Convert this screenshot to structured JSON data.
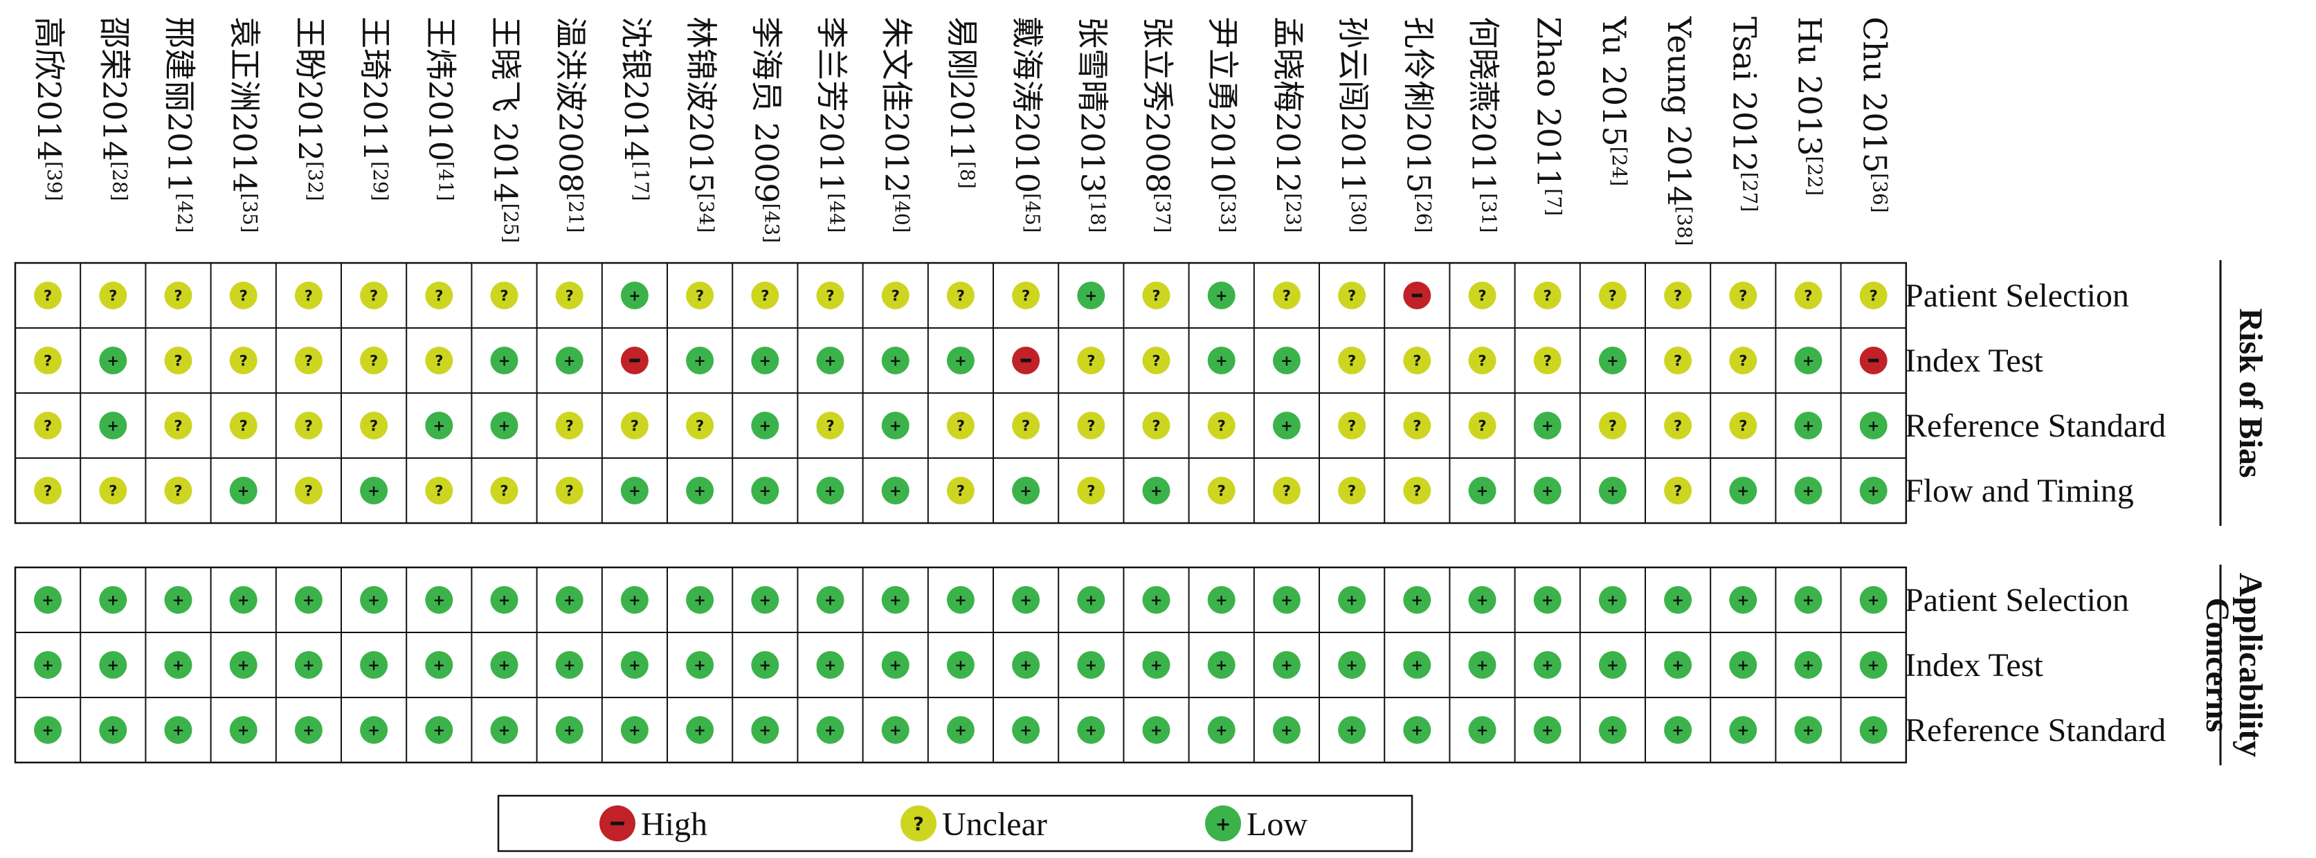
{
  "chart_data": {
    "type": "table",
    "studies": [
      {
        "name": "高欣2014",
        "ref": "[39]"
      },
      {
        "name": "邵荣2014",
        "ref": "[28]"
      },
      {
        "name": "邢建丽2011",
        "ref": "[42]"
      },
      {
        "name": "袁正洲2014",
        "ref": "[35]"
      },
      {
        "name": "王盼2012",
        "ref": "[32]"
      },
      {
        "name": "王琦2011",
        "ref": "[29]"
      },
      {
        "name": "王炜2010",
        "ref": "[41]"
      },
      {
        "name": "王晓飞 2014",
        "ref": "[25]"
      },
      {
        "name": "温洪波2008",
        "ref": "[21]"
      },
      {
        "name": "沈银2014",
        "ref": "[17]"
      },
      {
        "name": "林锦波2015",
        "ref": "[34]"
      },
      {
        "name": "李海员 2009",
        "ref": "[43]"
      },
      {
        "name": "李兰芳2011",
        "ref": "[44]"
      },
      {
        "name": "朱文佳2012",
        "ref": "[40]"
      },
      {
        "name": "易刚2011",
        "ref": "[8]"
      },
      {
        "name": "戴海涛2010",
        "ref": "[45]"
      },
      {
        "name": "张雪晴2013",
        "ref": "[18]"
      },
      {
        "name": "张立秀2008",
        "ref": "[37]"
      },
      {
        "name": "尹立勇2010",
        "ref": "[33]"
      },
      {
        "name": "孟晓梅2012",
        "ref": "[23]"
      },
      {
        "name": "孙云闯2011",
        "ref": "[30]"
      },
      {
        "name": "孔伶俐2015",
        "ref": "[26]"
      },
      {
        "name": "何晓燕2011",
        "ref": "[31]"
      },
      {
        "name": "Zhao 2011",
        "ref": "[7]"
      },
      {
        "name": "Yu 2015",
        "ref": "[24]"
      },
      {
        "name": "Yeung 2014",
        "ref": "[38]"
      },
      {
        "name": "Tsai 2012",
        "ref": "[27]"
      },
      {
        "name": "Hu 2013",
        "ref": "[22]"
      },
      {
        "name": "Chu 2015",
        "ref": "[36]"
      }
    ],
    "sections": [
      {
        "title_lines": [
          "Risk of Bias"
        ],
        "rows": [
          {
            "label": "Patient Selection",
            "values": [
              "?",
              "?",
              "?",
              "?",
              "?",
              "?",
              "?",
              "?",
              "?",
              "+",
              "?",
              "?",
              "?",
              "?",
              "?",
              "?",
              "+",
              "?",
              "+",
              "?",
              "?",
              "-",
              "?",
              "?",
              "?",
              "?",
              "?",
              "?",
              "?"
            ]
          },
          {
            "label": "Index Test",
            "values": [
              "?",
              "+",
              "?",
              "?",
              "?",
              "?",
              "?",
              "+",
              "+",
              "-",
              "+",
              "+",
              "+",
              "+",
              "+",
              "-",
              "?",
              "?",
              "+",
              "+",
              "?",
              "?",
              "?",
              "?",
              "+",
              "?",
              "?",
              "+",
              "-"
            ]
          },
          {
            "label": "Reference Standard",
            "values": [
              "?",
              "+",
              "?",
              "?",
              "?",
              "?",
              "+",
              "+",
              "?",
              "?",
              "?",
              "+",
              "?",
              "+",
              "?",
              "?",
              "?",
              "?",
              "?",
              "+",
              "?",
              "?",
              "?",
              "+",
              "?",
              "?",
              "?",
              "+",
              "+"
            ]
          },
          {
            "label": "Flow and Timing",
            "values": [
              "?",
              "?",
              "?",
              "+",
              "?",
              "+",
              "?",
              "?",
              "?",
              "+",
              "+",
              "+",
              "+",
              "+",
              "?",
              "+",
              "?",
              "+",
              "?",
              "?",
              "?",
              "?",
              "+",
              "+",
              "+",
              "?",
              "+",
              "+",
              "+"
            ]
          }
        ]
      },
      {
        "title_lines": [
          "Applicability",
          "Concerns"
        ],
        "rows": [
          {
            "label": "Patient Selection",
            "values": [
              "+",
              "+",
              "+",
              "+",
              "+",
              "+",
              "+",
              "+",
              "+",
              "+",
              "+",
              "+",
              "+",
              "+",
              "+",
              "+",
              "+",
              "+",
              "+",
              "+",
              "+",
              "+",
              "+",
              "+",
              "+",
              "+",
              "+",
              "+",
              "+"
            ]
          },
          {
            "label": "Index Test",
            "values": [
              "+",
              "+",
              "+",
              "+",
              "+",
              "+",
              "+",
              "+",
              "+",
              "+",
              "+",
              "+",
              "+",
              "+",
              "+",
              "+",
              "+",
              "+",
              "+",
              "+",
              "+",
              "+",
              "+",
              "+",
              "+",
              "+",
              "+",
              "+",
              "+"
            ]
          },
          {
            "label": "Reference Standard",
            "values": [
              "+",
              "+",
              "+",
              "+",
              "+",
              "+",
              "+",
              "+",
              "+",
              "+",
              "+",
              "+",
              "+",
              "+",
              "+",
              "+",
              "+",
              "+",
              "+",
              "+",
              "+",
              "+",
              "+",
              "+",
              "+",
              "+",
              "+",
              "+",
              "+"
            ]
          }
        ]
      }
    ],
    "legend": [
      {
        "symbol": "-",
        "label": "High",
        "color": "#c02228"
      },
      {
        "symbol": "?",
        "label": "Unclear",
        "color": "#cdd520"
      },
      {
        "symbol": "+",
        "label": "Low",
        "color": "#3bb34a"
      }
    ]
  }
}
